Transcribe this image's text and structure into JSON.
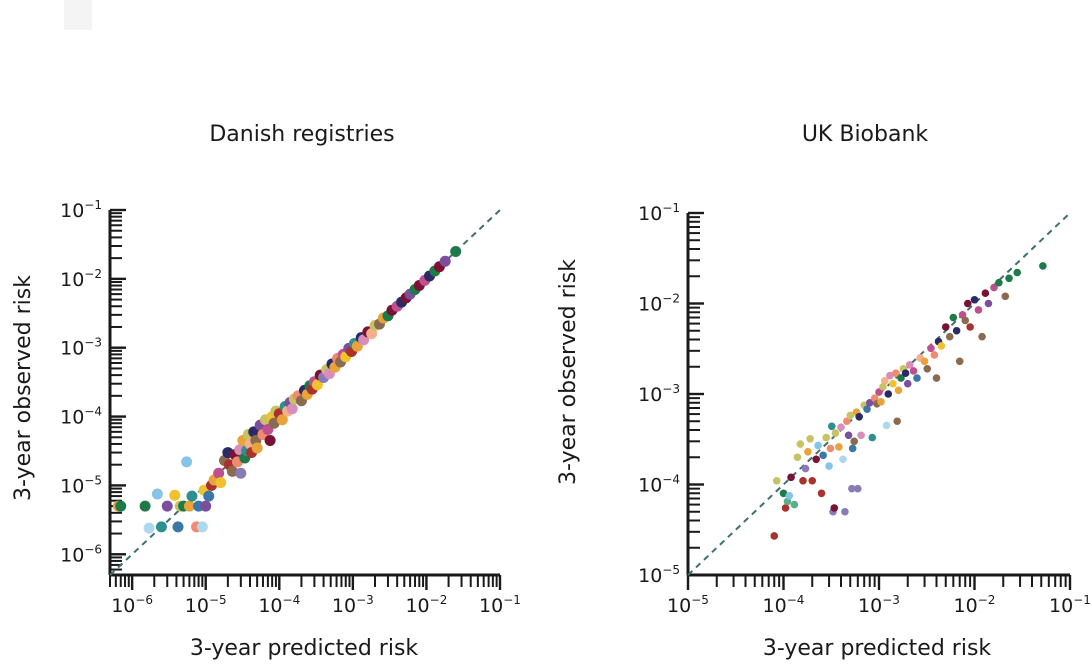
{
  "chart_data": [
    {
      "type": "scatter",
      "title": "Danish registries",
      "xlabel": "3-year predicted risk",
      "ylabel": "3-year observed risk",
      "xscale": "log",
      "yscale": "log",
      "xlim": [
        5e-07,
        0.1
      ],
      "ylim": [
        5e-07,
        0.1
      ],
      "xticks": [
        1e-06,
        1e-05,
        0.0001,
        0.001,
        0.01,
        0.1
      ],
      "yticks": [
        1e-06,
        1e-05,
        0.0001,
        0.001,
        0.01,
        0.1
      ],
      "tick_labels": [
        "10−6",
        "10−5",
        "10−4",
        "10−3",
        "10−2",
        "10−1"
      ],
      "reference_line": "y = x",
      "points": [
        [
          6.5e-07,
          5e-06,
          "#e8a33a"
        ],
        [
          7e-07,
          5e-06,
          "#1f7a4a"
        ],
        [
          1.5e-06,
          5e-06,
          "#1f7a4a"
        ],
        [
          2.2e-06,
          7.5e-06,
          "#85c6e8"
        ],
        [
          1.7e-06,
          2.4e-06,
          "#add8ee"
        ],
        [
          2.5e-06,
          2.5e-06,
          "#2e8f8f"
        ],
        [
          3e-06,
          5e-06,
          "#7b4f9c"
        ],
        [
          3.8e-06,
          7.2e-06,
          "#f2c12e"
        ],
        [
          4.2e-06,
          2.5e-06,
          "#3b78a8"
        ],
        [
          4.5e-06,
          5e-06,
          "#c8c262"
        ],
        [
          5e-06,
          5e-06,
          "#1f7a4a"
        ],
        [
          5.5e-06,
          2.2e-05,
          "#85c6e8"
        ],
        [
          6e-06,
          5e-06,
          "#e8a33a"
        ],
        [
          6.5e-06,
          7e-06,
          "#2e8f8f"
        ],
        [
          7.5e-06,
          2.5e-06,
          "#f28a6e"
        ],
        [
          8e-06,
          5e-06,
          "#3b78a8"
        ],
        [
          9e-06,
          2.5e-06,
          "#add8ee"
        ],
        [
          9.5e-06,
          8.5e-06,
          "#f2c12e"
        ],
        [
          1e-05,
          5e-06,
          "#7b4f9c"
        ],
        [
          1.1e-05,
          7e-06,
          "#3b78a8"
        ],
        [
          1.2e-05,
          1e-05,
          "#a8322d"
        ],
        [
          1.3e-05,
          1.2e-05,
          "#e8a33a"
        ],
        [
          1.5e-05,
          1.5e-05,
          "#c04f8e"
        ],
        [
          1.6e-05,
          1.1e-05,
          "#f2c12e"
        ],
        [
          1.8e-05,
          2.3e-05,
          "#8b6b4f"
        ],
        [
          2e-05,
          3e-05,
          "#2a2a66"
        ],
        [
          2.1e-05,
          2e-05,
          "#a8322d"
        ],
        [
          2.3e-05,
          1.6e-05,
          "#8b6b4f"
        ],
        [
          2.5e-05,
          2.8e-05,
          "#7a1235"
        ],
        [
          2.7e-05,
          2.2e-05,
          "#f28a6e"
        ],
        [
          2.9e-05,
          3.3e-05,
          "#d98dbb"
        ],
        [
          3e-05,
          1.5e-05,
          "#8a7ab8"
        ],
        [
          3.2e-05,
          4.5e-05,
          "#e8a33a"
        ],
        [
          3.4e-05,
          2.5e-05,
          "#1f7a4a"
        ],
        [
          3.6e-05,
          3.2e-05,
          "#2e8f8f"
        ],
        [
          3.8e-05,
          5.5e-05,
          "#c8c262"
        ],
        [
          4e-05,
          4e-05,
          "#f4b08a"
        ],
        [
          4.2e-05,
          3e-05,
          "#a8322d"
        ],
        [
          4.5e-05,
          6e-05,
          "#2a2a66"
        ],
        [
          4.8e-05,
          4.5e-05,
          "#8b6b4f"
        ],
        [
          5e-05,
          3.5e-05,
          "#e8a33a"
        ],
        [
          5.5e-05,
          7.5e-05,
          "#7b4f9c"
        ],
        [
          6e-05,
          5.5e-05,
          "#f28a6e"
        ],
        [
          6.5e-05,
          9e-05,
          "#c8c262"
        ],
        [
          7e-05,
          6.5e-05,
          "#c04f8e"
        ],
        [
          7.5e-05,
          4.5e-05,
          "#7a1235"
        ],
        [
          8e-05,
          0.0001,
          "#f2c12e"
        ],
        [
          8.5e-05,
          8e-05,
          "#8b6b4f"
        ],
        [
          9e-05,
          0.00012,
          "#c8c262"
        ],
        [
          0.0001,
          0.00011,
          "#a8322d"
        ],
        [
          0.00011,
          9e-05,
          "#e8a33a"
        ],
        [
          0.00012,
          0.00014,
          "#2e8f8f"
        ],
        [
          0.00013,
          0.00012,
          "#f4b08a"
        ],
        [
          0.00014,
          0.00016,
          "#7b4f9c"
        ],
        [
          0.00015,
          0.00013,
          "#d98dbb"
        ],
        [
          0.00016,
          0.00018,
          "#c8c262"
        ],
        [
          0.00018,
          0.0002,
          "#f28a6e"
        ],
        [
          0.0002,
          0.00017,
          "#8b6b4f"
        ],
        [
          0.00022,
          0.00024,
          "#2a2a66"
        ],
        [
          0.00024,
          0.00021,
          "#e8a33a"
        ],
        [
          0.00026,
          0.00028,
          "#1f7a4a"
        ],
        [
          0.00028,
          0.00025,
          "#a8322d"
        ],
        [
          0.0003,
          0.00032,
          "#c04f8e"
        ],
        [
          0.00033,
          0.00029,
          "#f2c12e"
        ],
        [
          0.00036,
          0.0004,
          "#7a1235"
        ],
        [
          0.0004,
          0.00037,
          "#8a7ab8"
        ],
        [
          0.00044,
          0.00048,
          "#c8c262"
        ],
        [
          0.00048,
          0.00042,
          "#d98dbb"
        ],
        [
          0.00052,
          0.00058,
          "#2a2a66"
        ],
        [
          0.00057,
          0.00052,
          "#e8a33a"
        ],
        [
          0.00062,
          0.0007,
          "#f28a6e"
        ],
        [
          0.00068,
          0.00062,
          "#8b6b4f"
        ],
        [
          0.00074,
          0.0008,
          "#c04f8e"
        ],
        [
          0.0008,
          0.00074,
          "#f2c12e"
        ],
        [
          0.00088,
          0.00098,
          "#7b4f9c"
        ],
        [
          0.00096,
          0.00088,
          "#a8322d"
        ],
        [
          0.00105,
          0.00115,
          "#2e8f8f"
        ],
        [
          0.00115,
          0.00105,
          "#e8a33a"
        ],
        [
          0.0013,
          0.0014,
          "#2a2a66"
        ],
        [
          0.0014,
          0.0013,
          "#d98dbb"
        ],
        [
          0.0016,
          0.0017,
          "#7a1235"
        ],
        [
          0.0018,
          0.0016,
          "#f4b08a"
        ],
        [
          0.002,
          0.0021,
          "#c8c262"
        ],
        [
          0.0023,
          0.0022,
          "#8b6b4f"
        ],
        [
          0.0026,
          0.0027,
          "#e8a33a"
        ],
        [
          0.003,
          0.0029,
          "#1f7a4a"
        ],
        [
          0.0034,
          0.0035,
          "#7a1235"
        ],
        [
          0.004,
          0.004,
          "#c04f8e"
        ],
        [
          0.0046,
          0.0046,
          "#2a2a66"
        ],
        [
          0.0053,
          0.0053,
          "#7a1235"
        ],
        [
          0.006,
          0.006,
          "#7b4f9c"
        ],
        [
          0.007,
          0.007,
          "#1f7a4a"
        ],
        [
          0.008,
          0.008,
          "#7a1235"
        ],
        [
          0.0095,
          0.0095,
          "#c04f8e"
        ],
        [
          0.011,
          0.011,
          "#2a2a66"
        ],
        [
          0.013,
          0.013,
          "#1f7a4a"
        ],
        [
          0.015,
          0.015,
          "#7a1235"
        ],
        [
          0.018,
          0.018,
          "#7b4f9c"
        ],
        [
          0.025,
          0.025,
          "#1f7a4a"
        ]
      ]
    },
    {
      "type": "scatter",
      "title": "UK Biobank",
      "xlabel": "3-year predicted risk",
      "ylabel": "3-year observed risk",
      "xscale": "log",
      "yscale": "log",
      "xlim": [
        1e-05,
        0.1
      ],
      "ylim": [
        1e-05,
        0.1
      ],
      "xticks": [
        1e-05,
        0.0001,
        0.001,
        0.01,
        0.1
      ],
      "yticks": [
        1e-05,
        0.0001,
        0.001,
        0.01,
        0.1
      ],
      "tick_labels": [
        "10−5",
        "10−4",
        "10−3",
        "10−2",
        "10−1"
      ],
      "reference_line": "y = x",
      "points": [
        [
          8e-05,
          2.7e-05,
          "#a8322d"
        ],
        [
          8.5e-05,
          0.00011,
          "#c8c262"
        ],
        [
          0.0001,
          8e-05,
          "#1f7a4a"
        ],
        [
          0.000105,
          5.5e-05,
          "#a8322d"
        ],
        [
          0.00011,
          6.5e-05,
          "#5aaf8a"
        ],
        [
          0.000115,
          7.5e-05,
          "#85c6e8"
        ],
        [
          0.00012,
          0.00012,
          "#7a1235"
        ],
        [
          0.00013,
          6e-05,
          "#5aaf8a"
        ],
        [
          0.00014,
          0.0002,
          "#c8c262"
        ],
        [
          0.00015,
          0.00028,
          "#c8c262"
        ],
        [
          0.00016,
          0.00011,
          "#a8322d"
        ],
        [
          0.00017,
          0.00015,
          "#8a7ab8"
        ],
        [
          0.00018,
          0.00023,
          "#e8a33a"
        ],
        [
          0.00019,
          0.00032,
          "#c8c262"
        ],
        [
          0.0002,
          0.00011,
          "#a8322d"
        ],
        [
          0.00022,
          0.00019,
          "#7a1235"
        ],
        [
          0.00023,
          0.00027,
          "#85c6e8"
        ],
        [
          0.00025,
          8e-05,
          "#a8322d"
        ],
        [
          0.00026,
          0.00021,
          "#3b78a8"
        ],
        [
          0.00028,
          0.00033,
          "#c8c262"
        ],
        [
          0.0003,
          0.00016,
          "#85c6e8"
        ],
        [
          0.00031,
          0.00025,
          "#f28a6e"
        ],
        [
          0.00032,
          0.00044,
          "#2e8f8f"
        ],
        [
          0.00033,
          5e-05,
          "#8a7ab8"
        ],
        [
          0.00034,
          5.5e-05,
          "#7a1235"
        ],
        [
          0.00035,
          0.00037,
          "#c8c262"
        ],
        [
          0.00038,
          0.00026,
          "#e8a33a"
        ],
        [
          0.0004,
          0.00043,
          "#d98dbb"
        ],
        [
          0.00042,
          0.00019,
          "#add8ee"
        ],
        [
          0.00044,
          5e-05,
          "#8a7ab8"
        ],
        [
          0.00046,
          0.0005,
          "#f28a6e"
        ],
        [
          0.00048,
          0.00035,
          "#7b4f9c"
        ],
        [
          0.0005,
          0.00058,
          "#c8c262"
        ],
        [
          0.00052,
          9e-05,
          "#8a7ab8"
        ],
        [
          0.00053,
          0.00025,
          "#3b78a8"
        ],
        [
          0.00055,
          0.0003,
          "#8b6b4f"
        ],
        [
          0.00058,
          0.00063,
          "#e8a33a"
        ],
        [
          0.0006,
          9e-05,
          "#8a7ab8"
        ],
        [
          0.00062,
          0.00056,
          "#2a2a66"
        ],
        [
          0.00065,
          0.00035,
          "#d98dbb"
        ],
        [
          0.0007,
          0.00075,
          "#c8c262"
        ],
        [
          0.00075,
          0.00068,
          "#3b78a8"
        ],
        [
          0.0008,
          0.0008,
          "#7b4f9c"
        ],
        [
          0.00085,
          0.00033,
          "#2e8f8f"
        ],
        [
          0.0009,
          0.0009,
          "#f28a6e"
        ],
        [
          0.00095,
          0.00078,
          "#8b6b4f"
        ],
        [
          0.001,
          0.00105,
          "#c04f8e"
        ],
        [
          0.00105,
          0.00082,
          "#e8a33a"
        ],
        [
          0.0011,
          0.0012,
          "#c8c262"
        ],
        [
          0.00115,
          0.0014,
          "#f4b08a"
        ],
        [
          0.0012,
          0.00045,
          "#add8ee"
        ],
        [
          0.00125,
          0.001,
          "#2a2a66"
        ],
        [
          0.0013,
          0.0016,
          "#d98dbb"
        ],
        [
          0.0014,
          0.0013,
          "#f2c12e"
        ],
        [
          0.0015,
          0.0017,
          "#f28a6e"
        ],
        [
          0.00155,
          0.0005,
          "#8b6b4f"
        ],
        [
          0.0016,
          0.0011,
          "#e8a33a"
        ],
        [
          0.0017,
          0.0015,
          "#1f7a4a"
        ],
        [
          0.0018,
          0.0019,
          "#c8c262"
        ],
        [
          0.0019,
          0.0017,
          "#2a2a66"
        ],
        [
          0.002,
          0.0013,
          "#7b4f9c"
        ],
        [
          0.0021,
          0.0021,
          "#d98dbb"
        ],
        [
          0.0023,
          0.0018,
          "#c04f8e"
        ],
        [
          0.0025,
          0.0015,
          "#3b78a8"
        ],
        [
          0.0027,
          0.0025,
          "#f4b08a"
        ],
        [
          0.003,
          0.0023,
          "#e8a33a"
        ],
        [
          0.0032,
          0.0019,
          "#8b6b4f"
        ],
        [
          0.0035,
          0.0032,
          "#c04f8e"
        ],
        [
          0.0038,
          0.0027,
          "#f28a6e"
        ],
        [
          0.004,
          0.0015,
          "#8b6b4f"
        ],
        [
          0.0042,
          0.0038,
          "#2a2a66"
        ],
        [
          0.0045,
          0.0034,
          "#f2c12e"
        ],
        [
          0.005,
          0.0055,
          "#7a1235"
        ],
        [
          0.0055,
          0.0043,
          "#8b6b4f"
        ],
        [
          0.006,
          0.007,
          "#1f7a4a"
        ],
        [
          0.0065,
          0.005,
          "#2a2a66"
        ],
        [
          0.007,
          0.0023,
          "#8b6b4f"
        ],
        [
          0.0075,
          0.0075,
          "#c04f8e"
        ],
        [
          0.008,
          0.0065,
          "#8b6b4f"
        ],
        [
          0.0085,
          0.01,
          "#7a1235"
        ],
        [
          0.009,
          0.0055,
          "#a8322d"
        ],
        [
          0.01,
          0.011,
          "#2a2a66"
        ],
        [
          0.011,
          0.0085,
          "#c04f8e"
        ],
        [
          0.012,
          0.0043,
          "#8b6b4f"
        ],
        [
          0.013,
          0.013,
          "#7a1235"
        ],
        [
          0.014,
          0.01,
          "#7b4f9c"
        ],
        [
          0.016,
          0.015,
          "#c04f8e"
        ],
        [
          0.018,
          0.017,
          "#1f7a4a"
        ],
        [
          0.021,
          0.012,
          "#8b6b4f"
        ],
        [
          0.023,
          0.019,
          "#1f7a4a"
        ],
        [
          0.028,
          0.022,
          "#1f7a4a"
        ],
        [
          0.052,
          0.026,
          "#1f7a4a"
        ]
      ]
    }
  ]
}
